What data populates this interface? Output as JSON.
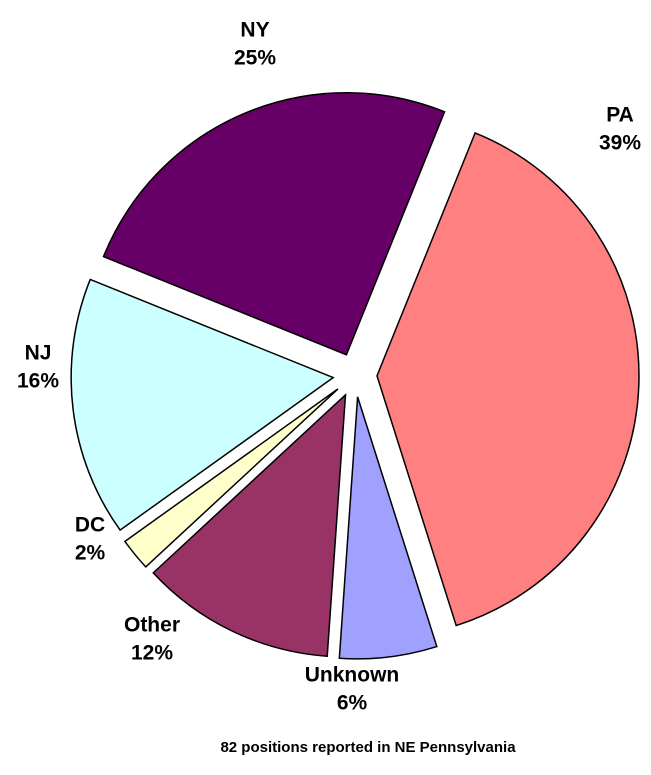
{
  "chart_data": {
    "type": "pie",
    "categories": [
      "PA",
      "Unknown",
      "Other",
      "DC",
      "NJ",
      "NY"
    ],
    "values": [
      39,
      6,
      12,
      2,
      16,
      25
    ],
    "value_labels": [
      "39%",
      "6%",
      "12%",
      "2%",
      "16%",
      "25%"
    ],
    "colors": [
      "#ff8080",
      "#a0a0ff",
      "#993366",
      "#ffffcc",
      "#ccffff",
      "#660066"
    ],
    "exploded": true,
    "footnote": "82 positions reported in NE Pennsylvania"
  }
}
